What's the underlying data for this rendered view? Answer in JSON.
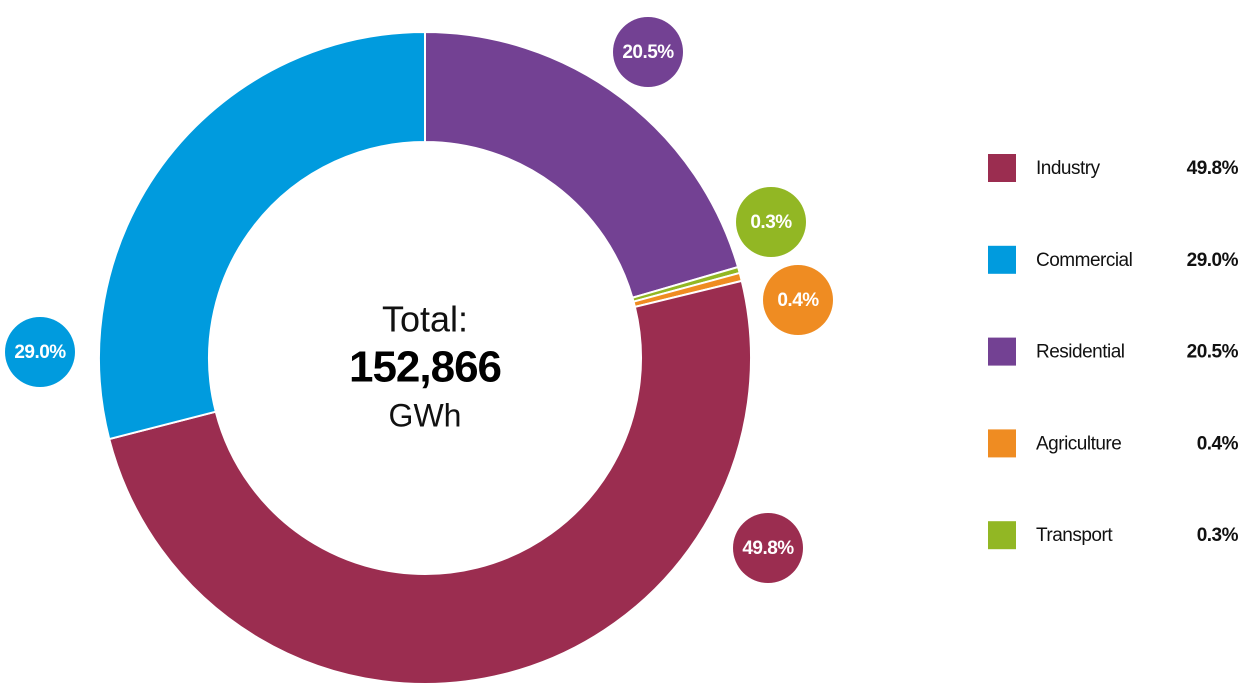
{
  "chart_data": {
    "type": "donut",
    "categories": [
      "Industry",
      "Commercial",
      "Residential",
      "Agriculture",
      "Transport"
    ],
    "values": [
      49.8,
      29.0,
      20.5,
      0.4,
      0.3
    ],
    "value_labels": [
      "49.8%",
      "29.0%",
      "20.5%",
      "0.4%",
      "0.3%"
    ],
    "colors": [
      "#9b2d50",
      "#009bde",
      "#734193",
      "#ef8c22",
      "#92b724"
    ],
    "center_text": [
      "Total:",
      "152,866",
      "GWh"
    ],
    "legend": "right"
  }
}
